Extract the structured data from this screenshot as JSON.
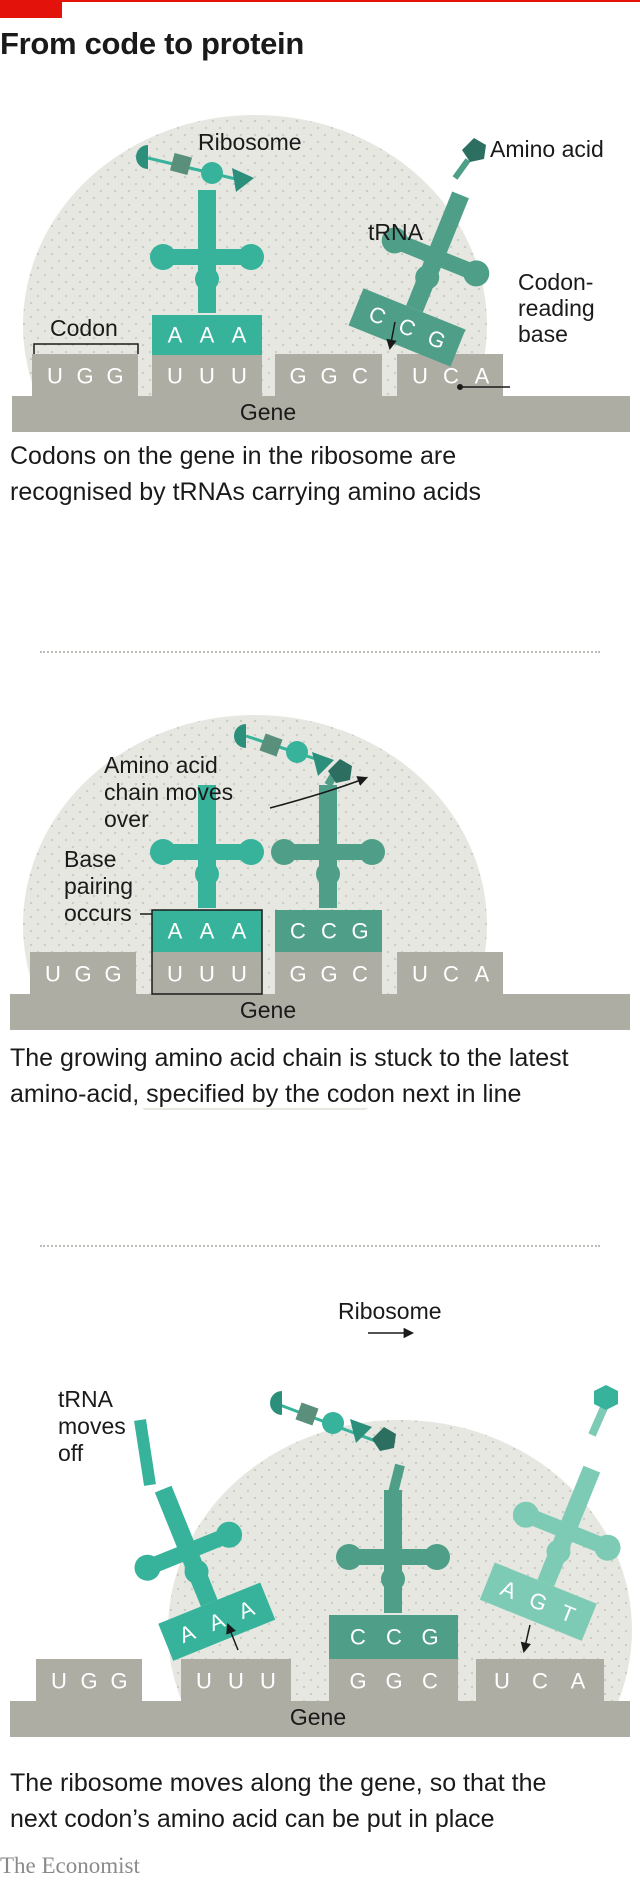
{
  "title": "From code to protein",
  "colors": {
    "accent_red": "#e3120b",
    "ribosome": "#e6e7e1",
    "gene_gray": "#aeada3",
    "trna_teal": "#36b39a",
    "trna_dark": "#4f9e88",
    "trna_light": "#7ecbb5"
  },
  "panel1": {
    "labels": {
      "ribosome": "Ribosome",
      "amino_acid": "Amino acid",
      "trna": "tRNA",
      "codon_reading_1": "Codon-",
      "codon_reading_2": "reading",
      "codon_reading_3": "base",
      "codon": "Codon",
      "gene": "Gene"
    },
    "codons": [
      {
        "b1": "U",
        "b2": "G",
        "b3": "G"
      },
      {
        "b1": "U",
        "b2": "U",
        "b3": "U"
      },
      {
        "b1": "G",
        "b2": "G",
        "b3": "C"
      },
      {
        "b1": "U",
        "b2": "C",
        "b3": "A"
      }
    ],
    "trna_left": {
      "b1": "A",
      "b2": "A",
      "b3": "A"
    },
    "trna_right": {
      "b1": "C",
      "b2": "C",
      "b3": "G"
    },
    "caption_1": "Codons on the gene in the ribosome are",
    "caption_2": "recognised by tRNAs carrying amino acids"
  },
  "panel2": {
    "labels": {
      "chain_1": "Amino acid",
      "chain_2": "chain moves",
      "chain_3": "over",
      "pairing_1": "Base",
      "pairing_2": "pairing",
      "pairing_3": "occurs",
      "gene": "Gene"
    },
    "codons": [
      {
        "b1": "U",
        "b2": "G",
        "b3": "G"
      },
      {
        "b1": "U",
        "b2": "U",
        "b3": "U"
      },
      {
        "b1": "G",
        "b2": "G",
        "b3": "C"
      },
      {
        "b1": "U",
        "b2": "C",
        "b3": "A"
      }
    ],
    "trna_left": {
      "b1": "A",
      "b2": "A",
      "b3": "A"
    },
    "trna_right": {
      "b1": "C",
      "b2": "C",
      "b3": "G"
    },
    "caption_1": "The growing amino acid chain is stuck to the latest",
    "caption_2": "amino-acid, specified by the codon next in line"
  },
  "panel3": {
    "labels": {
      "ribosome": "Ribosome",
      "moves_1": "tRNA",
      "moves_2": "moves",
      "moves_3": "off",
      "gene": "Gene"
    },
    "codons": [
      {
        "b1": "U",
        "b2": "G",
        "b3": "G"
      },
      {
        "b1": "U",
        "b2": "U",
        "b3": "U"
      },
      {
        "b1": "G",
        "b2": "G",
        "b3": "C"
      },
      {
        "b1": "U",
        "b2": "C",
        "b3": "A"
      }
    ],
    "trna_left": {
      "b1": "A",
      "b2": "A",
      "b3": "A"
    },
    "trna_mid": {
      "b1": "C",
      "b2": "C",
      "b3": "G"
    },
    "trna_right": {
      "b1": "A",
      "b2": "G",
      "b3": "T"
    },
    "caption_1": "The ribosome moves along the gene, so that the",
    "caption_2": "next codon’s amino acid can be put in place"
  },
  "credit": "The Economist"
}
